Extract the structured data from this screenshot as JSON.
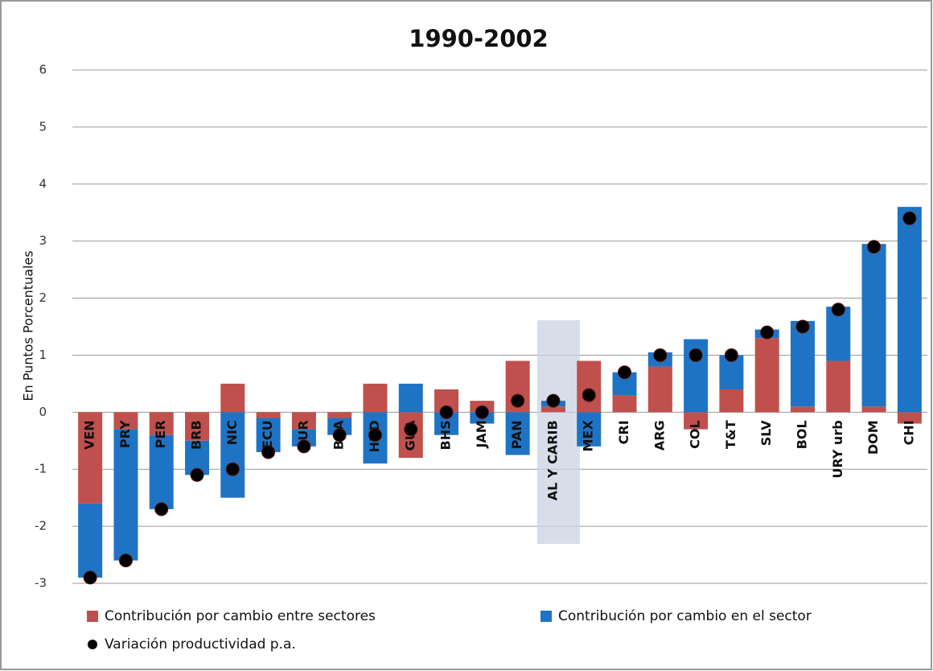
{
  "chart_data": {
    "type": "bar",
    "stacked": true,
    "title": "1990-2002",
    "y_label": "En Puntos Porcentuales",
    "categories": [
      "VEN",
      "PRY",
      "PER",
      "BRB",
      "NIC",
      "ECU",
      "SUR",
      "BRA",
      "HND",
      "GUA",
      "BHS",
      "JAM",
      "PAN",
      "AL Y CARIB",
      "MEX",
      "CRI",
      "ARG",
      "COL",
      "T&T",
      "SLV",
      "BOL",
      "URY urb",
      "DOM",
      "CHI"
    ],
    "highlight": 13,
    "series": [
      {
        "name": "Contribución por cambio entre sectores",
        "color": "#c0504d",
        "type": "bar",
        "values": [
          -1.6,
          -0.3,
          -0.4,
          -0.5,
          0.5,
          -0.1,
          -0.3,
          -0.1,
          0.5,
          -0.8,
          0.4,
          0.2,
          0.9,
          0.1,
          0.9,
          0.3,
          0.8,
          -0.3,
          0.4,
          1.3,
          0.1,
          0.9,
          0.1,
          -0.2
        ]
      },
      {
        "name": "Contribución por cambio en el sector",
        "color": "#1f73c4",
        "type": "bar",
        "values": [
          -1.3,
          -2.3,
          -1.3,
          -0.6,
          -1.5,
          -0.6,
          -0.3,
          -0.3,
          -0.9,
          0.5,
          -0.4,
          -0.2,
          -0.75,
          0.1,
          -0.6,
          0.4,
          0.25,
          1.28,
          0.6,
          0.15,
          1.5,
          0.95,
          2.85,
          3.6
        ]
      },
      {
        "name": "Variación productividad p.a.",
        "color": "#000000",
        "type": "dot",
        "values": [
          -2.9,
          -2.6,
          -1.7,
          -1.1,
          -1.0,
          -0.7,
          -0.6,
          -0.4,
          -0.4,
          -0.3,
          0,
          0,
          0.2,
          0.2,
          0.3,
          0.7,
          1.0,
          1.0,
          1.0,
          1.4,
          1.5,
          1.8,
          2.9,
          3.4
        ]
      }
    ],
    "ylim": [
      -3,
      6
    ],
    "yticks": [
      -3,
      -2,
      -1,
      0,
      1,
      2,
      3,
      4,
      5,
      6
    ],
    "grid": true
  }
}
